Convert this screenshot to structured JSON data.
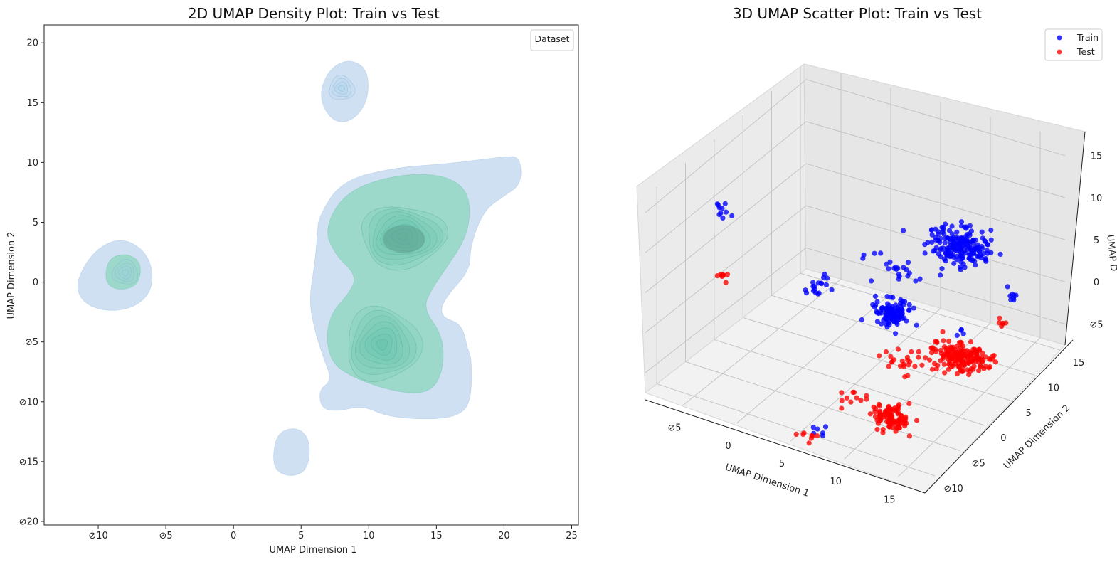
{
  "chart_data": [
    {
      "type": "kde_density",
      "title": "2D UMAP Density Plot: Train vs Test",
      "xlabel": "UMAP Dimension 1",
      "ylabel": "UMAP Dimension 2",
      "xlim": [
        -14,
        25.5
      ],
      "ylim": [
        -20.3,
        21.5
      ],
      "xticks": [
        -10,
        -5,
        0,
        5,
        10,
        15,
        20,
        25
      ],
      "yticks": [
        -20,
        -15,
        -10,
        -5,
        0,
        5,
        10,
        15,
        20
      ],
      "xtick_labels": [
        "⊘10",
        "⊘5",
        "0",
        "5",
        "10",
        "15",
        "20",
        "25"
      ],
      "ytick_labels": [
        "⊘20",
        "⊘15",
        "⊘10",
        "⊘5",
        "0",
        "5",
        "10",
        "15",
        "20"
      ],
      "legend": {
        "title": "Dataset",
        "placement": "top-right"
      },
      "series": [
        {
          "color": "#c7dbf0",
          "stroke": "#8fb2dd",
          "blobs": [
            [
              [
                -11.7,
                0.0
              ],
              [
                -10.3,
                2.7
              ],
              [
                -8.2,
                3.8
              ],
              [
                -6.2,
                2.3
              ],
              [
                -5.9,
                -0.5
              ],
              [
                -7.2,
                -2.1
              ],
              [
                -9.4,
                -2.5
              ],
              [
                -11.2,
                -1.7
              ]
            ],
            [
              [
                6.3,
                15.3
              ],
              [
                6.9,
                17.6
              ],
              [
                8.4,
                18.7
              ],
              [
                9.9,
                17.9
              ],
              [
                10.0,
                15.3
              ],
              [
                8.9,
                13.5
              ],
              [
                7.4,
                13.3
              ]
            ],
            [
              [
                2.9,
                -14.4
              ],
              [
                3.3,
                -12.5
              ],
              [
                4.8,
                -12.1
              ],
              [
                5.7,
                -13.3
              ],
              [
                5.5,
                -15.7
              ],
              [
                4.3,
                -16.3
              ],
              [
                3.1,
                -15.8
              ]
            ],
            [
              [
                6.3,
                5.5
              ],
              [
                8.0,
                8.5
              ],
              [
                12.0,
                9.6
              ],
              [
                16.0,
                9.9
              ],
              [
                20.0,
                10.5
              ],
              [
                21.2,
                10.5
              ],
              [
                21.3,
                8.2
              ],
              [
                20.0,
                7.2
              ],
              [
                18.5,
                6.0
              ],
              [
                17.5,
                3.0
              ],
              [
                17.5,
                1.0
              ],
              [
                15.5,
                -1.5
              ],
              [
                15.3,
                -2.9
              ],
              [
                16.9,
                -3.5
              ],
              [
                17.3,
                -5.6
              ],
              [
                17.6,
                -6.3
              ],
              [
                17.6,
                -9.5
              ],
              [
                17.0,
                -11.0
              ],
              [
                15.0,
                -11.5
              ],
              [
                11.5,
                -11.3
              ],
              [
                9.5,
                -10.3
              ],
              [
                7.8,
                -10.8
              ],
              [
                6.5,
                -10.6
              ],
              [
                6.3,
                -9.0
              ],
              [
                7.3,
                -8.2
              ],
              [
                6.6,
                -6.2
              ],
              [
                5.9,
                -3.6
              ],
              [
                5.6,
                -1.4
              ],
              [
                6.0,
                1.5
              ],
              [
                6.2,
                4.0
              ]
            ]
          ]
        },
        {
          "color": "#8fd7bf",
          "stroke": "#62b8a0",
          "blobs": [
            [
              [
                -9.5,
                0.8
              ],
              [
                -9.1,
                2.1
              ],
              [
                -7.8,
                2.4
              ],
              [
                -6.8,
                1.6
              ],
              [
                -7.0,
                -0.2
              ],
              [
                -8.3,
                -0.7
              ],
              [
                -9.3,
                -0.3
              ]
            ],
            [
              [
                6.7,
                4.5
              ],
              [
                8.3,
                7.6
              ],
              [
                12.0,
                9.0
              ],
              [
                15.6,
                9.0
              ],
              [
                17.5,
                7.5
              ],
              [
                17.4,
                4.0
              ],
              [
                15.5,
                0.8
              ],
              [
                14.7,
                -0.5
              ],
              [
                14.0,
                -2.2
              ],
              [
                15.5,
                -4.5
              ],
              [
                15.5,
                -7.5
              ],
              [
                14.5,
                -9.3
              ],
              [
                12.0,
                -9.2
              ],
              [
                8.8,
                -8.0
              ],
              [
                7.0,
                -6.5
              ],
              [
                6.9,
                -3.0
              ],
              [
                8.8,
                -0.6
              ],
              [
                9.0,
                0.7
              ],
              [
                7.5,
                2.3
              ]
            ]
          ]
        }
      ],
      "density_peaks": [
        {
          "x": 12.5,
          "y": 3.8,
          "level": 1.0
        },
        {
          "x": 11.0,
          "y": -5.2,
          "level": 0.85
        },
        {
          "x": 8.0,
          "y": 16.2,
          "level": 0.35
        },
        {
          "x": -8.0,
          "y": 0.8,
          "level": 0.4
        }
      ]
    },
    {
      "type": "scatter3d",
      "title": "3D UMAP Scatter Plot:  Train vs Test",
      "xlabel": "UMAP Dimension 1",
      "ylabel": "UMAP Dimension 2",
      "zlabel": "UMAP D",
      "xticks": [
        -5,
        0,
        5,
        10,
        15
      ],
      "yticks": [
        -10,
        -5,
        0,
        5,
        10,
        15
      ],
      "zticks": [
        -5,
        0,
        5,
        10,
        15
      ],
      "xtick_labels": [
        "⊘5",
        "0",
        "5",
        "10",
        "15"
      ],
      "ytick_labels": [
        "⊘10",
        "⊘5",
        "0",
        "5",
        "10",
        "15"
      ],
      "ztick_labels": [
        "⊘5",
        "0",
        "5",
        "10",
        "15"
      ],
      "legend": {
        "placement": "top-right"
      },
      "series": [
        {
          "name": "Train",
          "color": "#0000ff",
          "clusters": [
            {
              "x": 13.5,
              "y": 3.5,
              "z": 10.5,
              "sx": 1.4,
              "sy": 1.1,
              "sz": 0.8,
              "n": 200
            },
            {
              "x": 11.0,
              "y": -5.2,
              "z": 7.0,
              "sx": 0.8,
              "sy": 0.7,
              "sz": 0.7,
              "n": 110
            },
            {
              "x": -8.0,
              "y": 0.8,
              "z": 8.0,
              "sx": 0.3,
              "sy": 0.4,
              "sz": 0.6,
              "n": 10
            },
            {
              "x": 3.0,
              "y": -3.0,
              "z": 5.5,
              "sx": 0.6,
              "sy": 0.5,
              "sz": 0.3,
              "n": 14
            },
            {
              "x": 8.5,
              "y": 0.5,
              "z": 8.0,
              "sx": 1.3,
              "sy": 0.7,
              "sz": 0.4,
              "n": 22
            },
            {
              "x": 17.5,
              "y": 4.8,
              "z": 5.0,
              "sx": 0.4,
              "sy": 0.4,
              "sz": 0.4,
              "n": 8
            },
            {
              "x": 15.0,
              "y": 0.5,
              "z": 2.5,
              "sx": 0.3,
              "sy": 0.3,
              "sz": 0.3,
              "n": 4
            },
            {
              "x": 7.0,
              "y": -11.0,
              "z": -5.5,
              "sx": 0.4,
              "sy": 0.3,
              "sz": 0.3,
              "n": 6
            },
            {
              "x": 2.5,
              "y": -1.0,
              "z": 5.0,
              "sx": 0.3,
              "sy": 0.3,
              "sz": 0.2,
              "n": 4
            }
          ]
        },
        {
          "name": "Test",
          "color": "#ff0000",
          "clusters": [
            {
              "x": 13.5,
              "y": 3.5,
              "z": -3.0,
              "sx": 1.4,
              "sy": 1.1,
              "sz": 0.6,
              "n": 180
            },
            {
              "x": 11.0,
              "y": -5.2,
              "z": -6.0,
              "sx": 0.8,
              "sy": 0.7,
              "sz": 0.7,
              "n": 100
            },
            {
              "x": -8.0,
              "y": 0.8,
              "z": 0.0,
              "sx": 0.3,
              "sy": 0.3,
              "sz": 0.3,
              "n": 8
            },
            {
              "x": 7.0,
              "y": -4.0,
              "z": -6.0,
              "sx": 0.6,
              "sy": 0.6,
              "sz": 0.4,
              "n": 10
            },
            {
              "x": 9.5,
              "y": 0.0,
              "z": -3.0,
              "sx": 1.2,
              "sy": 0.8,
              "sz": 0.5,
              "n": 22
            },
            {
              "x": 6.5,
              "y": -11.0,
              "z": -7.0,
              "sx": 0.5,
              "sy": 0.4,
              "sz": 0.3,
              "n": 8
            },
            {
              "x": 17.0,
              "y": 4.3,
              "z": 2.0,
              "sx": 0.4,
              "sy": 0.3,
              "sz": 0.3,
              "n": 6
            }
          ]
        }
      ]
    }
  ]
}
